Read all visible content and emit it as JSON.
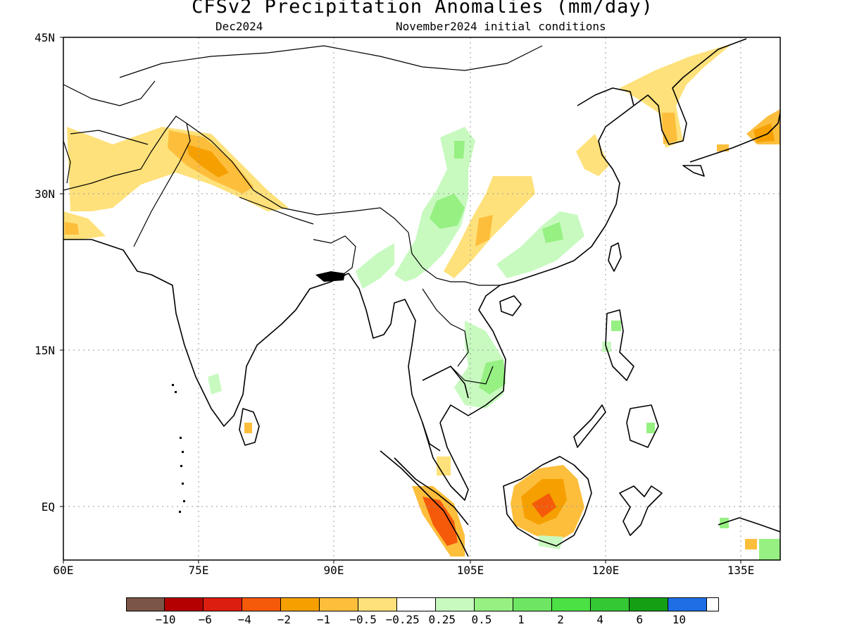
{
  "title": "CFSv2 Precipitation Anomalies (mm/day)",
  "valid_month": "Dec2024",
  "initial_conditions": "November2024 initial conditions",
  "axes": {
    "x_labels": [
      "60E",
      "75E",
      "90E",
      "105E",
      "120E",
      "135E"
    ],
    "y_labels": [
      "45N",
      "30N",
      "15N",
      "EQ"
    ]
  },
  "colorbar": {
    "colors": [
      "#7b5548",
      "#b40000",
      "#dc1e10",
      "#f55a0a",
      "#f5a000",
      "#fdbe3c",
      "#fee17a",
      "#ffffff",
      "#c8fac0",
      "#96f082",
      "#6ee664",
      "#4be044",
      "#34c834",
      "#14a014",
      "#1e6ee6"
    ],
    "labels": [
      "−10",
      "−6",
      "−4",
      "−2",
      "−1",
      "−0.5",
      "−0.25",
      "0.25",
      "0.5",
      "1",
      "2",
      "4",
      "6",
      "10"
    ]
  },
  "anomaly_regions": [
    {
      "name": "western-himalaya-dry",
      "category": "-0.5 to -0.25"
    },
    {
      "name": "kashmir-dry",
      "category": "-2 to -1"
    },
    {
      "name": "korea-dry",
      "category": "-1 to -0.5"
    },
    {
      "name": "south-china-dry",
      "category": "-1 to -0.5"
    },
    {
      "name": "southwest-china-wet",
      "category": "0.5 to 1"
    },
    {
      "name": "southeast-china-wet",
      "category": "0.5 to 1"
    },
    {
      "name": "vietnam-wet",
      "category": "0.5 to 1"
    },
    {
      "name": "borneo-dry",
      "category": "-4 to -2"
    },
    {
      "name": "sumatra-dry",
      "category": "-4 to -2"
    },
    {
      "name": "japan-dry",
      "category": "-2 to -1"
    },
    {
      "name": "new-guinea-wet",
      "category": "0.5 to 1"
    }
  ]
}
